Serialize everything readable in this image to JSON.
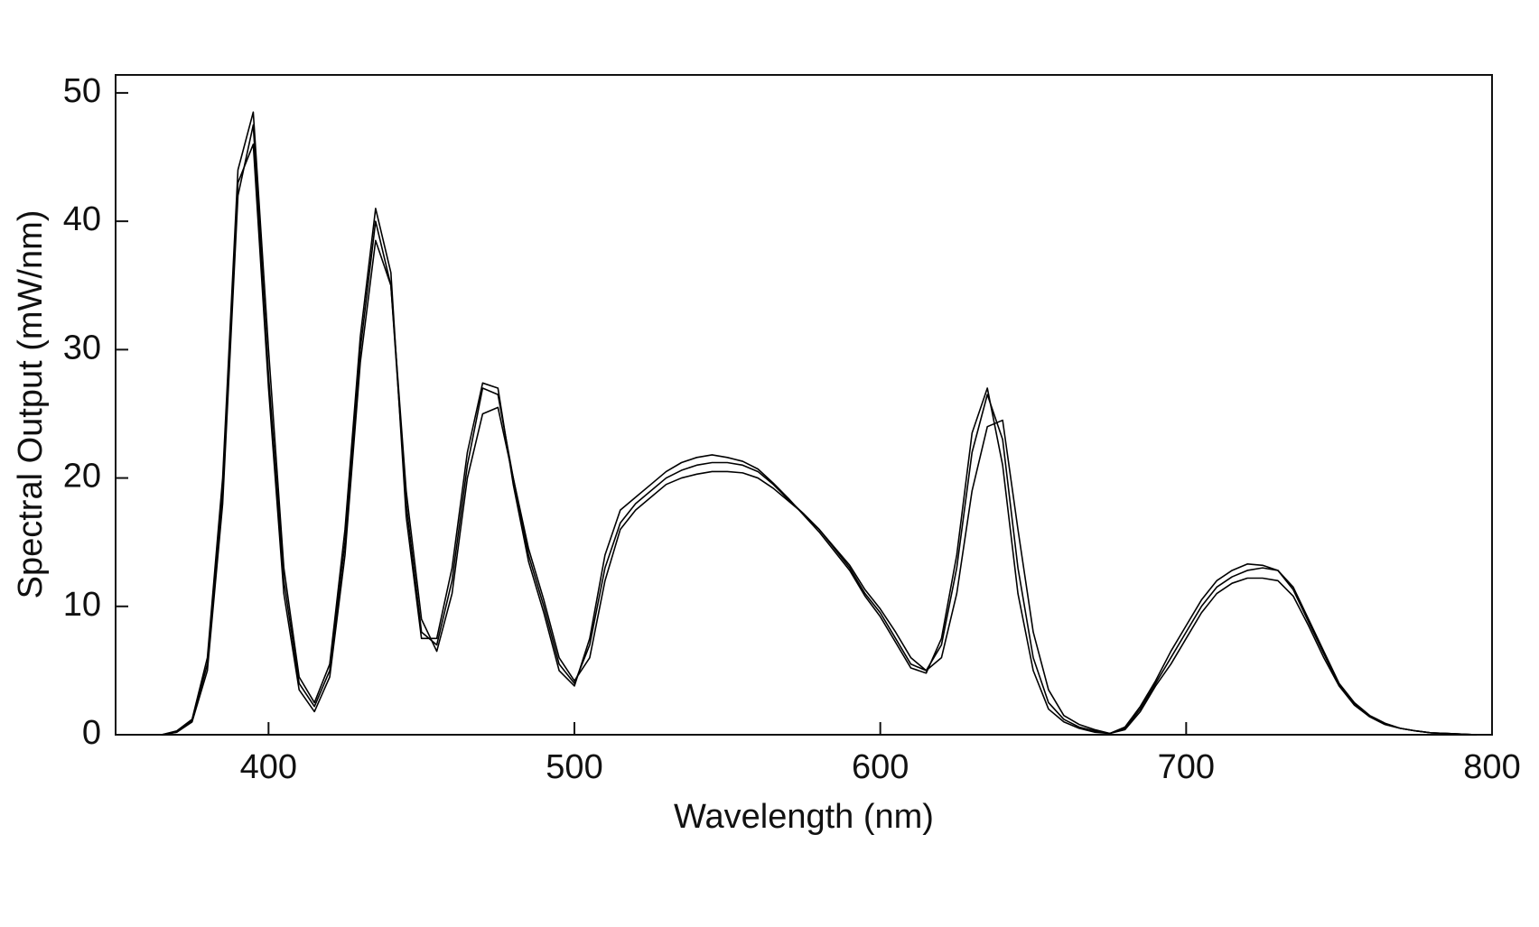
{
  "chart_data": {
    "type": "line",
    "x_label": "Wavelength (nm)",
    "y_label": "Spectral Output (mW/nm)",
    "x": [
      365,
      370,
      375,
      380,
      385,
      390,
      395,
      400,
      405,
      410,
      415,
      420,
      425,
      430,
      435,
      440,
      445,
      450,
      455,
      460,
      465,
      470,
      475,
      480,
      485,
      490,
      495,
      500,
      505,
      510,
      515,
      520,
      525,
      530,
      535,
      540,
      545,
      550,
      555,
      560,
      565,
      570,
      575,
      580,
      585,
      590,
      595,
      600,
      605,
      610,
      615,
      620,
      625,
      630,
      635,
      640,
      645,
      650,
      655,
      660,
      665,
      670,
      675,
      680,
      685,
      690,
      695,
      700,
      705,
      710,
      715,
      720,
      725,
      730,
      735,
      740,
      745,
      750,
      755,
      760,
      765,
      770,
      775,
      780,
      785,
      790,
      795
    ],
    "series": [
      {
        "color": "#000000",
        "values": [
          0,
          0.2,
          1,
          5,
          18,
          42,
          47.5,
          28,
          12,
          4,
          2.2,
          5,
          15,
          30,
          40,
          35,
          18,
          8,
          7,
          12,
          21,
          27,
          26.5,
          20,
          14,
          10,
          5.5,
          4,
          7,
          13,
          16.5,
          18,
          19,
          20,
          20.6,
          21,
          21.2,
          21.2,
          21,
          20.5,
          19.5,
          18.3,
          17.2,
          16,
          14.5,
          13,
          11,
          9.5,
          7.5,
          5.5,
          5,
          7,
          13,
          22,
          26.5,
          23,
          13,
          6,
          2.5,
          1.2,
          0.6,
          0.3,
          0.1,
          0.5,
          2,
          4,
          6,
          8,
          10,
          11.5,
          12.3,
          12.8,
          13,
          12.8,
          11.5,
          9,
          6.5,
          4,
          2.5,
          1.5,
          0.9,
          0.5,
          0.3,
          0.15,
          0.1,
          0.05,
          0
        ]
      },
      {
        "color": "#000000",
        "values": [
          0,
          0.2,
          1.1,
          5.5,
          19,
          43,
          46,
          27,
          11,
          3.5,
          1.8,
          4.5,
          14,
          29,
          38.5,
          35,
          19,
          9,
          6.5,
          11,
          20,
          25,
          25.5,
          20,
          14.5,
          10.5,
          6,
          4.2,
          6,
          12,
          16,
          17.5,
          18.5,
          19.5,
          20,
          20.3,
          20.5,
          20.5,
          20.4,
          20,
          19.2,
          18.2,
          17.2,
          16,
          14.6,
          13.2,
          11.3,
          9.8,
          8,
          6,
          5,
          6,
          11,
          19,
          24,
          24.5,
          16,
          8,
          3.5,
          1.5,
          0.8,
          0.4,
          0.1,
          0.4,
          1.8,
          3.8,
          5.5,
          7.5,
          9.5,
          11,
          11.8,
          12.2,
          12.2,
          12,
          10.8,
          8.5,
          6,
          3.8,
          2.3,
          1.4,
          0.8,
          0.5,
          0.3,
          0.15,
          0.1,
          0.05,
          0
        ]
      },
      {
        "color": "#000000",
        "values": [
          0,
          0.3,
          1.2,
          6,
          20,
          44,
          48.5,
          30,
          13,
          4.5,
          2.5,
          5.5,
          16,
          31,
          41,
          36,
          17,
          7.5,
          7.5,
          13,
          22,
          27.4,
          27,
          19.5,
          13.5,
          9.5,
          5,
          3.8,
          7.5,
          14,
          17.5,
          18.5,
          19.5,
          20.5,
          21.2,
          21.6,
          21.8,
          21.6,
          21.3,
          20.7,
          19.6,
          18.4,
          17.1,
          15.8,
          14.3,
          12.8,
          10.8,
          9.2,
          7.2,
          5.2,
          4.8,
          7.5,
          14,
          23.5,
          27,
          21,
          11,
          5,
          2,
          1,
          0.5,
          0.2,
          0.1,
          0.6,
          2.2,
          4.2,
          6.5,
          8.5,
          10.5,
          12,
          12.8,
          13.3,
          13.2,
          12.8,
          11.3,
          8.8,
          6.3,
          3.9,
          2.4,
          1.4,
          0.8,
          0.5,
          0.3,
          0.15,
          0.1,
          0.05,
          0
        ]
      }
    ],
    "xlim": [
      350,
      800
    ],
    "xticks": [
      400,
      500,
      600,
      700,
      800
    ],
    "ylim": [
      0,
      51.4
    ],
    "yticks": [
      0,
      10,
      20,
      30,
      40,
      50
    ],
    "grid": false
  }
}
